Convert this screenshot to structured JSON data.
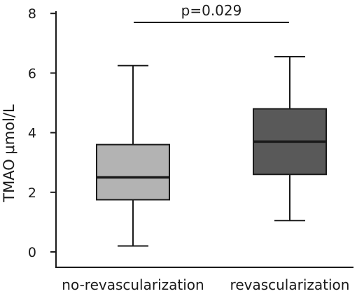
{
  "chart_data": {
    "type": "box",
    "title": "",
    "xlabel": "",
    "ylabel": "TMAO μmol/L",
    "ylim": [
      0,
      8
    ],
    "yticks": [
      0,
      2,
      4,
      6,
      8
    ],
    "grid": false,
    "categories": [
      "no-revascularization",
      "revascularization"
    ],
    "boxes": [
      {
        "category": "no-revascularization",
        "min": 0.2,
        "q1": 1.75,
        "median": 2.5,
        "q3": 3.6,
        "max": 6.25,
        "color": "#b3b3b3"
      },
      {
        "category": "revascularization",
        "min": 1.05,
        "q1": 2.6,
        "median": 3.7,
        "q3": 4.8,
        "max": 6.55,
        "color": "#595959"
      }
    ],
    "annotation": {
      "text": "p=0.029"
    }
  }
}
